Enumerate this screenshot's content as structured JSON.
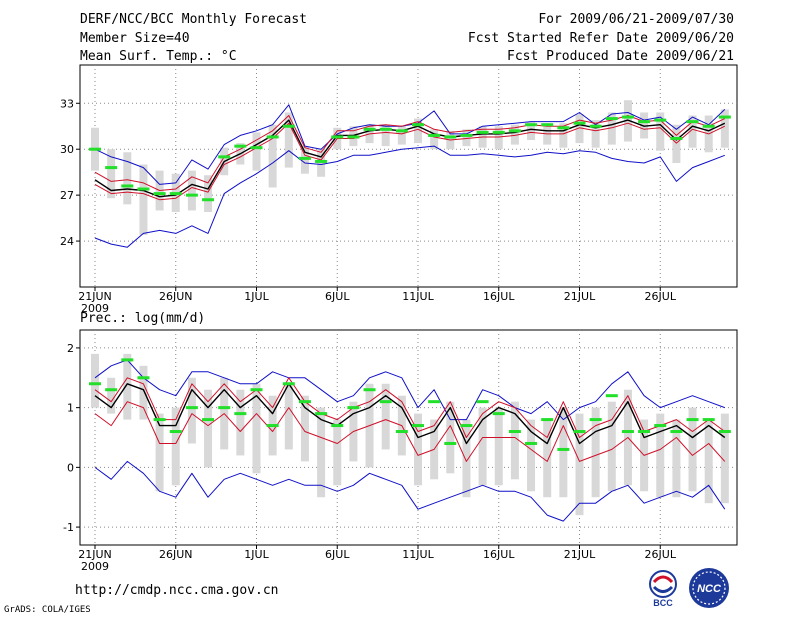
{
  "header": {
    "title": "DERF/NCC/BCC Monthly Forecast",
    "member": "Member Size=40",
    "variable": "Mean Surf. Temp.: °C",
    "period": "For 2009/06/21-2009/07/30",
    "started": "Fcst Started Refer Date 2009/06/20",
    "produced": "Fcst Produced Date 2009/06/21"
  },
  "footer": {
    "url": "http://cmdp.ncc.cma.gov.cn",
    "grads": "GrADS: COLA/IGES",
    "logo1_text": "BCC",
    "logo2_text": "NCC"
  },
  "colors": {
    "envelope": "#1010c8",
    "mean": "#000000",
    "median": "#d0102a",
    "obs": "#22e02a",
    "box": "#d8d8d8"
  },
  "chart_data": [
    {
      "type": "line",
      "title": "Mean Surf. Temp.: °C",
      "ylabel": "°C",
      "ylim": [
        21,
        35.5
      ],
      "yticks": [
        24,
        27,
        30,
        33
      ],
      "xticks": [
        {
          "day": 0,
          "label": "21JUN",
          "sub": "2009"
        },
        {
          "day": 5,
          "label": "26JUN"
        },
        {
          "day": 10,
          "label": "1JUL"
        },
        {
          "day": 15,
          "label": "6JUL"
        },
        {
          "day": 20,
          "label": "11JUL"
        },
        {
          "day": 25,
          "label": "16JUL"
        },
        {
          "day": 30,
          "label": "21JUL"
        },
        {
          "day": 35,
          "label": "26JUL"
        }
      ],
      "series": [
        {
          "name": "max",
          "role": "envelope",
          "values": [
            30,
            29.5,
            29.2,
            28.8,
            27.7,
            27.8,
            29.3,
            28.7,
            30.3,
            30.9,
            31.2,
            31.6,
            32.9,
            30.2,
            30.0,
            31.0,
            31.4,
            31.6,
            31.5,
            31.5,
            31.7,
            32.5,
            31.0,
            31.0,
            31.5,
            31.6,
            31.7,
            31.8,
            31.8,
            31.8,
            32.4,
            31.6,
            32.3,
            32.4,
            31.9,
            32.1,
            31.3,
            32.1,
            31.6,
            32.6
          ]
        },
        {
          "name": "min",
          "role": "envelope",
          "values": [
            24.2,
            23.8,
            23.6,
            24.5,
            24.7,
            24.5,
            25.0,
            24.5,
            27.1,
            27.8,
            28.4,
            29.1,
            29.9,
            29.1,
            29.0,
            29.2,
            29.6,
            29.6,
            29.8,
            30.0,
            30.1,
            30.2,
            29.6,
            29.6,
            29.7,
            29.6,
            29.5,
            29.6,
            29.8,
            29.7,
            29.9,
            29.8,
            29.4,
            29.2,
            29.1,
            29.5,
            27.9,
            28.8,
            29.2,
            29.6
          ]
        },
        {
          "name": "ensemble mean",
          "role": "mean",
          "values": [
            28.0,
            27.3,
            27.4,
            27.3,
            26.9,
            27.0,
            27.7,
            27.4,
            29.2,
            29.7,
            30.3,
            30.9,
            31.9,
            29.8,
            29.5,
            30.9,
            30.9,
            31.2,
            31.3,
            31.2,
            31.5,
            31.0,
            30.8,
            30.9,
            31.0,
            31.0,
            31.1,
            31.3,
            31.2,
            31.2,
            31.6,
            31.4,
            31.6,
            31.9,
            31.5,
            31.6,
            30.6,
            31.5,
            31.2,
            31.7
          ]
        },
        {
          "name": "median",
          "role": "median",
          "values": [
            27.7,
            27.1,
            27.2,
            27.1,
            26.7,
            26.8,
            27.5,
            27.2,
            29.0,
            29.5,
            30.1,
            30.7,
            31.7,
            29.6,
            29.3,
            30.7,
            30.7,
            31.0,
            31.1,
            31.0,
            31.3,
            30.8,
            30.6,
            30.7,
            30.8,
            30.8,
            30.9,
            31.1,
            31.0,
            31.0,
            31.4,
            31.2,
            31.4,
            31.7,
            31.3,
            31.4,
            30.4,
            31.3,
            31.0,
            31.5
          ]
        },
        {
          "name": "upper",
          "role": "upper",
          "values": [
            28.5,
            27.9,
            28.0,
            27.8,
            27.3,
            27.4,
            28.2,
            27.8,
            29.5,
            30.0,
            30.6,
            31.2,
            32.2,
            30.1,
            29.8,
            31.2,
            31.2,
            31.5,
            31.6,
            31.5,
            31.8,
            31.3,
            31.1,
            31.2,
            31.3,
            31.3,
            31.4,
            31.6,
            31.5,
            31.5,
            31.9,
            31.7,
            31.9,
            32.2,
            31.8,
            31.9,
            30.9,
            31.8,
            31.5,
            32.0
          ]
        },
        {
          "name": "observation",
          "role": "obs",
          "values": [
            30.0,
            28.8,
            27.6,
            27.4,
            27.1,
            27.1,
            27.0,
            26.7,
            29.5,
            30.2,
            30.1,
            30.8,
            31.5,
            29.4,
            29.2,
            30.8,
            30.8,
            31.3,
            31.3,
            31.2,
            31.6,
            30.9,
            30.8,
            30.9,
            31.1,
            31.1,
            31.2,
            31.6,
            31.6,
            31.4,
            31.7,
            31.5,
            32.0,
            32.1,
            31.8,
            31.9,
            30.7,
            31.8,
            31.5,
            32.1
          ]
        }
      ],
      "boxes": {
        "high": [
          31.4,
          30.0,
          29.8,
          29.0,
          28.6,
          28.4,
          28.6,
          28.3,
          30.1,
          30.4,
          31.1,
          31.6,
          32.4,
          30.2,
          30.0,
          31.4,
          31.5,
          31.6,
          31.6,
          31.5,
          32.0,
          31.3,
          31.2,
          31.3,
          31.5,
          31.5,
          31.6,
          31.8,
          31.7,
          31.7,
          32.3,
          31.9,
          32.4,
          33.2,
          32.4,
          32.4,
          31.6,
          32.2,
          32.2,
          32.6
        ],
        "low": [
          28.6,
          26.8,
          26.4,
          24.4,
          26.0,
          25.9,
          26.0,
          25.9,
          28.3,
          29.0,
          28.6,
          27.5,
          28.8,
          28.4,
          28.2,
          30.0,
          30.2,
          30.4,
          30.2,
          30.3,
          30.4,
          30.0,
          30.0,
          30.2,
          30.1,
          30.0,
          30.3,
          30.6,
          30.3,
          30.1,
          30.4,
          30.1,
          30.3,
          30.5,
          30.7,
          29.9,
          29.1,
          30.1,
          29.8,
          30.1
        ]
      }
    },
    {
      "type": "line",
      "title": "Prec.: log(mm/d)",
      "ylabel": "log(mm/d)",
      "ylim": [
        -1.3,
        2.3
      ],
      "yticks": [
        -1,
        0,
        1,
        2
      ],
      "xticks": [
        {
          "day": 0,
          "label": "21JUN",
          "sub": "2009"
        },
        {
          "day": 5,
          "label": "26JUN"
        },
        {
          "day": 10,
          "label": "1JUL"
        },
        {
          "day": 15,
          "label": "6JUL"
        },
        {
          "day": 20,
          "label": "11JUL"
        },
        {
          "day": 25,
          "label": "16JUL"
        },
        {
          "day": 30,
          "label": "21JUL"
        },
        {
          "day": 35,
          "label": "26JUL"
        }
      ],
      "series": [
        {
          "name": "max",
          "role": "envelope",
          "values": [
            1.5,
            1.7,
            1.8,
            1.5,
            1.3,
            1.2,
            1.6,
            1.6,
            1.5,
            1.4,
            1.4,
            1.6,
            1.5,
            1.5,
            1.3,
            1.1,
            1.2,
            1.5,
            1.6,
            1.5,
            1.0,
            1.3,
            0.8,
            0.8,
            1.3,
            1.2,
            1.0,
            0.9,
            1.1,
            0.8,
            1.0,
            1.1,
            1.4,
            1.6,
            1.2,
            1.0,
            1.1,
            1.2,
            1.1,
            1.0
          ]
        },
        {
          "name": "min",
          "role": "envelope",
          "values": [
            0.0,
            -0.2,
            0.1,
            -0.1,
            -0.4,
            -0.5,
            -0.1,
            -0.5,
            -0.2,
            -0.1,
            -0.2,
            -0.3,
            -0.2,
            -0.3,
            -0.3,
            -0.4,
            -0.3,
            -0.1,
            -0.2,
            -0.3,
            -0.7,
            -0.6,
            -0.5,
            -0.4,
            -0.3,
            -0.4,
            -0.4,
            -0.5,
            -0.8,
            -0.9,
            -0.6,
            -0.6,
            -0.4,
            -0.3,
            -0.6,
            -0.5,
            -0.4,
            -0.5,
            -0.3,
            -0.7
          ]
        },
        {
          "name": "ensemble mean",
          "role": "mean",
          "values": [
            1.2,
            1.0,
            1.4,
            1.3,
            0.7,
            0.7,
            1.3,
            1.0,
            1.3,
            1.0,
            1.2,
            0.9,
            1.4,
            1.0,
            0.8,
            0.7,
            0.9,
            1.0,
            1.2,
            1.0,
            0.5,
            0.6,
            1.0,
            0.4,
            0.8,
            1.0,
            0.9,
            0.6,
            0.4,
            1.0,
            0.4,
            0.6,
            0.7,
            1.1,
            0.5,
            0.6,
            0.7,
            0.5,
            0.7,
            0.5
          ]
        },
        {
          "name": "median",
          "role": "median",
          "values": [
            0.9,
            0.7,
            1.1,
            1.0,
            0.4,
            0.4,
            0.9,
            0.7,
            0.9,
            0.6,
            0.9,
            0.6,
            1.0,
            0.6,
            0.5,
            0.4,
            0.6,
            0.7,
            0.8,
            0.7,
            0.2,
            0.3,
            0.7,
            0.1,
            0.5,
            0.5,
            0.5,
            0.3,
            0.1,
            0.7,
            0.1,
            0.2,
            0.3,
            0.5,
            0.2,
            0.3,
            0.5,
            0.2,
            0.4,
            0.1
          ]
        },
        {
          "name": "upper",
          "role": "upper",
          "values": [
            1.3,
            1.1,
            1.5,
            1.4,
            0.8,
            0.8,
            1.4,
            1.1,
            1.4,
            1.1,
            1.3,
            1.0,
            1.5,
            1.1,
            0.9,
            0.8,
            1.0,
            1.1,
            1.3,
            1.1,
            0.6,
            0.7,
            1.1,
            0.5,
            0.9,
            1.1,
            1.0,
            0.7,
            0.5,
            1.1,
            0.5,
            0.7,
            0.8,
            1.2,
            0.6,
            0.7,
            0.8,
            0.6,
            0.8,
            0.6
          ]
        },
        {
          "name": "observation",
          "role": "obs",
          "values": [
            1.4,
            1.3,
            1.8,
            1.5,
            0.8,
            0.6,
            1.0,
            0.8,
            1.0,
            0.9,
            1.3,
            0.7,
            1.4,
            1.1,
            0.9,
            0.7,
            1.0,
            1.3,
            1.1,
            0.6,
            0.7,
            1.1,
            0.4,
            0.7,
            1.1,
            0.9,
            0.6,
            0.4,
            0.8,
            0.3,
            0.6,
            0.8,
            1.2,
            0.6,
            0.6,
            0.7,
            0.6,
            0.8,
            0.8,
            0.6
          ]
        }
      ],
      "boxes": {
        "high": [
          1.9,
          1.5,
          1.9,
          1.7,
          0.9,
          1.0,
          1.5,
          1.3,
          1.5,
          1.3,
          1.4,
          1.2,
          1.4,
          1.2,
          1.0,
          0.8,
          1.1,
          1.4,
          1.4,
          1.2,
          0.9,
          0.8,
          1.1,
          0.8,
          1.0,
          1.0,
          1.1,
          0.8,
          0.8,
          1.0,
          0.9,
          1.0,
          1.1,
          1.3,
          0.8,
          0.9,
          0.8,
          1.0,
          0.8,
          0.9
        ],
        "low": [
          1.0,
          0.9,
          0.8,
          0.8,
          -0.4,
          -0.3,
          0.4,
          0.0,
          0.3,
          0.2,
          -0.1,
          0.2,
          0.3,
          0.1,
          -0.5,
          -0.3,
          0.1,
          0.0,
          0.3,
          0.2,
          -0.3,
          -0.2,
          -0.1,
          -0.5,
          -0.3,
          -0.3,
          -0.2,
          -0.4,
          -0.5,
          -0.5,
          -0.8,
          -0.5,
          -0.4,
          -0.3,
          -0.4,
          -0.5,
          -0.5,
          -0.4,
          -0.6,
          -0.6
        ]
      }
    }
  ]
}
